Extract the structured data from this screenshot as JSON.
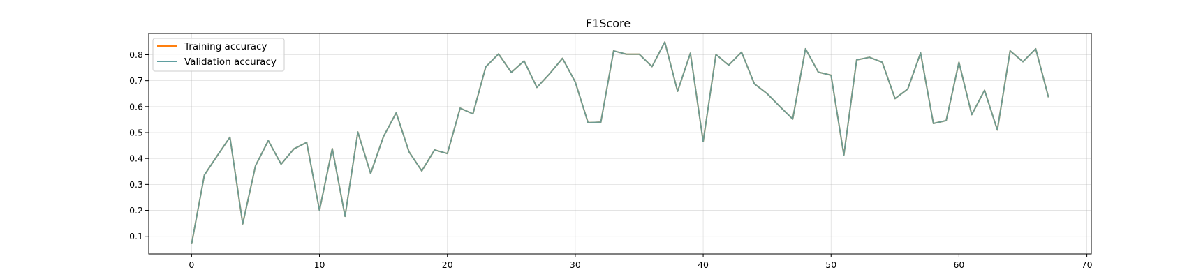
{
  "chart_data": {
    "type": "line",
    "title": "F1Score",
    "xlabel": "",
    "ylabel": "",
    "xlim": [
      -3.35,
      70.35
    ],
    "ylim": [
      0.032,
      0.882
    ],
    "xticks": [
      0,
      10,
      20,
      30,
      40,
      50,
      60,
      70
    ],
    "yticks": [
      0.1,
      0.2,
      0.3,
      0.4,
      0.5,
      0.6,
      0.7,
      0.8
    ],
    "xtick_labels": [
      "0",
      "10",
      "20",
      "30",
      "40",
      "50",
      "60",
      "70"
    ],
    "ytick_labels": [
      "0.1",
      "0.2",
      "0.3",
      "0.4",
      "0.5",
      "0.6",
      "0.7",
      "0.8"
    ],
    "grid": true,
    "legend_position": "top-left",
    "x": [
      0,
      1,
      2,
      3,
      4,
      5,
      6,
      7,
      8,
      9,
      10,
      11,
      12,
      13,
      14,
      15,
      16,
      17,
      18,
      19,
      20,
      21,
      22,
      23,
      24,
      25,
      26,
      27,
      28,
      29,
      30,
      31,
      32,
      33,
      34,
      35,
      36,
      37,
      38,
      39,
      40,
      41,
      42,
      43,
      44,
      45,
      46,
      47,
      48,
      49,
      50,
      51,
      52,
      53,
      54,
      55,
      56,
      57,
      58,
      59,
      60,
      61,
      62,
      63,
      64,
      65,
      66,
      67
    ],
    "series": [
      {
        "name": "Training accuracy",
        "color": "#ff7f0e",
        "values": [
          0.07,
          0.336,
          0.41,
          0.482,
          0.148,
          0.372,
          0.469,
          0.378,
          0.437,
          0.462,
          0.2,
          0.438,
          0.177,
          0.502,
          0.342,
          0.484,
          0.576,
          0.426,
          0.352,
          0.433,
          0.419,
          0.594,
          0.572,
          0.753,
          0.803,
          0.732,
          0.776,
          0.674,
          0.727,
          0.786,
          0.695,
          0.538,
          0.54,
          0.815,
          0.802,
          0.802,
          0.754,
          0.849,
          0.659,
          0.806,
          0.465,
          0.801,
          0.76,
          0.81,
          0.688,
          0.65,
          0.6,
          0.552,
          0.823,
          0.733,
          0.721,
          0.413,
          0.78,
          0.79,
          0.771,
          0.631,
          0.668,
          0.807,
          0.535,
          0.546,
          0.771,
          0.569,
          0.663,
          0.51,
          0.815,
          0.773,
          0.823,
          0.636
        ]
      },
      {
        "name": "Validation accuracy",
        "color": "#5f9ea0",
        "values": [
          0.07,
          0.336,
          0.41,
          0.482,
          0.148,
          0.372,
          0.469,
          0.378,
          0.437,
          0.462,
          0.2,
          0.438,
          0.177,
          0.502,
          0.342,
          0.484,
          0.576,
          0.426,
          0.352,
          0.433,
          0.419,
          0.594,
          0.572,
          0.753,
          0.803,
          0.732,
          0.776,
          0.674,
          0.727,
          0.786,
          0.695,
          0.538,
          0.54,
          0.815,
          0.802,
          0.802,
          0.754,
          0.849,
          0.659,
          0.806,
          0.465,
          0.801,
          0.76,
          0.81,
          0.688,
          0.65,
          0.6,
          0.552,
          0.823,
          0.733,
          0.721,
          0.413,
          0.78,
          0.79,
          0.771,
          0.631,
          0.668,
          0.807,
          0.535,
          0.546,
          0.771,
          0.569,
          0.663,
          0.51,
          0.815,
          0.773,
          0.823,
          0.636
        ]
      }
    ]
  }
}
